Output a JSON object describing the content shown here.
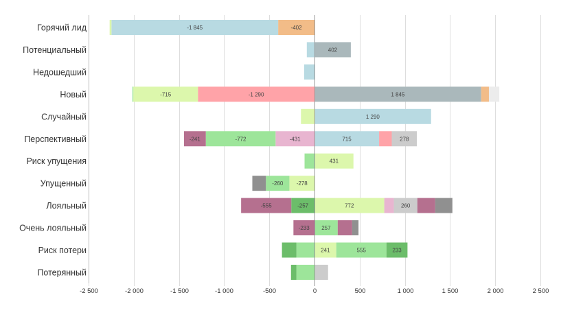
{
  "chart_data": {
    "type": "bar",
    "orientation": "horizontal",
    "stacked": true,
    "diverging": true,
    "title": "",
    "xlabel": "",
    "ylabel": "",
    "xlim": [
      -2500,
      2500
    ],
    "xticks": [
      -2500,
      -2000,
      -1500,
      -1000,
      -500,
      0,
      500,
      1000,
      1500,
      2000,
      2500
    ],
    "xtick_labels": [
      "-2 500",
      "-2 000",
      "-1 500",
      "-1 000",
      "-500",
      "0",
      "500",
      "1 000",
      "1 500",
      "2 000",
      "2 500"
    ],
    "grid": true,
    "legend": "none",
    "colors": {
      "light_blue": "#b8dae2",
      "orange": "#f2bc88",
      "grey_blue": "#aab8bb",
      "yellow_green": "#dcf7ac",
      "pink": "#ffa3a8",
      "light_grey": "#cccccc",
      "very_light_grey": "#ececec",
      "dark_grey": "#909090",
      "purple": "#b5708f",
      "light_green": "#9de59a",
      "dark_green": "#6cbd6a",
      "light_pink": "#e8b5d0"
    },
    "categories": [
      "Горячий лид",
      "Потенциальный",
      "Недошедший",
      "Новый",
      "Случайный",
      "Перспективный",
      "Риск упущения",
      "Упущенный",
      "Лояльный",
      "Очень лояльный",
      "Риск потери",
      "Потерянный"
    ],
    "rows": [
      {
        "negative": [
          {
            "value": -402,
            "color": "orange",
            "label": "-402"
          },
          {
            "value": -1845,
            "color": "light_blue",
            "label": "-1 845"
          },
          {
            "value": -20,
            "color": "yellow_green",
            "label": ""
          }
        ],
        "positive": []
      },
      {
        "negative": [
          {
            "value": -85,
            "color": "light_blue",
            "label": ""
          }
        ],
        "positive": [
          {
            "value": 402,
            "color": "grey_blue",
            "label": "402"
          }
        ]
      },
      {
        "negative": [
          {
            "value": -115,
            "color": "light_blue",
            "label": ""
          }
        ],
        "positive": []
      },
      {
        "negative": [
          {
            "value": -1290,
            "color": "pink",
            "label": "-1 290"
          },
          {
            "value": -715,
            "color": "yellow_green",
            "label": "-715"
          },
          {
            "value": -10,
            "color": "light_green",
            "label": ""
          }
        ],
        "positive": [
          {
            "value": 1845,
            "color": "grey_blue",
            "label": "1 845"
          },
          {
            "value": 85,
            "color": "orange",
            "label": ""
          },
          {
            "value": 115,
            "color": "very_light_grey",
            "label": ""
          }
        ]
      },
      {
        "negative": [
          {
            "value": -150,
            "color": "yellow_green",
            "label": ""
          }
        ],
        "positive": [
          {
            "value": 1290,
            "color": "light_blue",
            "label": "1 290"
          }
        ]
      },
      {
        "negative": [
          {
            "value": -431,
            "color": "light_pink",
            "label": "-431"
          },
          {
            "value": -772,
            "color": "light_green",
            "label": "-772"
          },
          {
            "value": -241,
            "color": "purple",
            "label": "-241"
          }
        ],
        "positive": [
          {
            "value": 715,
            "color": "light_blue",
            "label": "715"
          },
          {
            "value": 140,
            "color": "pink",
            "label": ""
          },
          {
            "value": 278,
            "color": "light_grey",
            "label": "278"
          }
        ]
      },
      {
        "negative": [
          {
            "value": -110,
            "color": "light_green",
            "label": ""
          }
        ],
        "positive": [
          {
            "value": 431,
            "color": "yellow_green",
            "label": "431"
          }
        ]
      },
      {
        "negative": [
          {
            "value": -278,
            "color": "yellow_green",
            "label": "-278"
          },
          {
            "value": -260,
            "color": "light_green",
            "label": "-260"
          },
          {
            "value": -150,
            "color": "dark_grey",
            "label": ""
          }
        ],
        "positive": []
      },
      {
        "negative": [
          {
            "value": -257,
            "color": "dark_green",
            "label": "-257"
          },
          {
            "value": -555,
            "color": "purple",
            "label": "-555"
          }
        ],
        "positive": [
          {
            "value": 772,
            "color": "yellow_green",
            "label": "772"
          },
          {
            "value": 106,
            "color": "light_pink",
            "label": ""
          },
          {
            "value": 260,
            "color": "light_grey",
            "label": "260"
          },
          {
            "value": 198,
            "color": "purple",
            "label": ""
          },
          {
            "value": 190,
            "color": "dark_grey",
            "label": ""
          }
        ]
      },
      {
        "negative": [
          {
            "value": -233,
            "color": "purple",
            "label": "-233"
          }
        ],
        "positive": [
          {
            "value": 257,
            "color": "light_green",
            "label": "257"
          },
          {
            "value": 160,
            "color": "purple",
            "label": ""
          },
          {
            "value": 70,
            "color": "dark_grey",
            "label": ""
          }
        ]
      },
      {
        "negative": [
          {
            "value": -200,
            "color": "light_green",
            "label": ""
          },
          {
            "value": -160,
            "color": "dark_green",
            "label": ""
          }
        ],
        "positive": [
          {
            "value": 241,
            "color": "yellow_green",
            "label": "241"
          },
          {
            "value": 555,
            "color": "light_green",
            "label": "555"
          },
          {
            "value": 233,
            "color": "dark_green",
            "label": "233"
          }
        ]
      },
      {
        "negative": [
          {
            "value": -200,
            "color": "light_green",
            "label": ""
          },
          {
            "value": -60,
            "color": "dark_green",
            "label": ""
          }
        ],
        "positive": [
          {
            "value": 150,
            "color": "light_grey",
            "label": ""
          }
        ]
      }
    ]
  }
}
